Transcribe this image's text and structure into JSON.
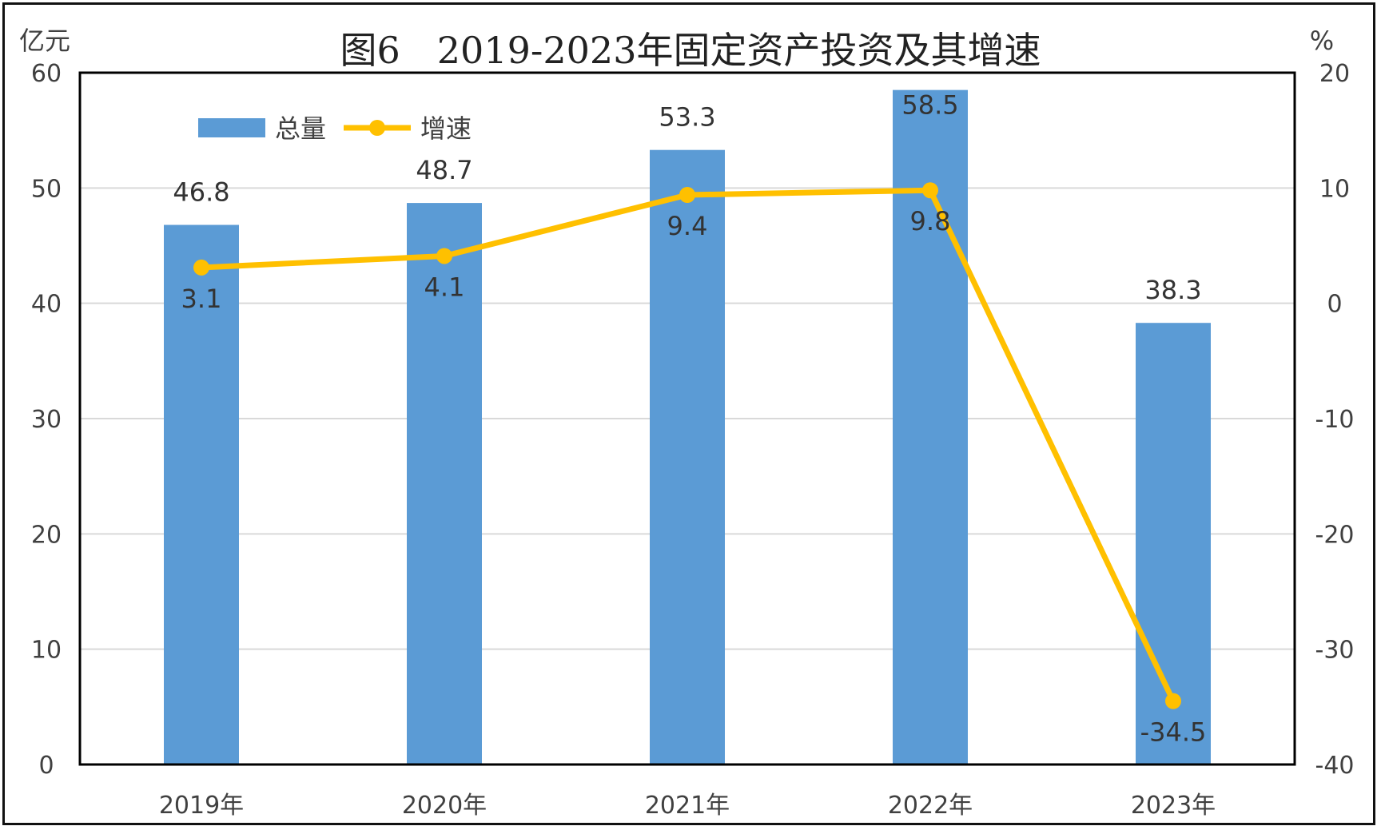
{
  "chart_data": {
    "type": "bar",
    "title": "图6　2019-2023年固定资产投资及其增速",
    "categories": [
      "2019年",
      "2020年",
      "2021年",
      "2022年",
      "2023年"
    ],
    "series": [
      {
        "name": "总量",
        "type": "bar",
        "axis": "left",
        "values": [
          46.8,
          48.7,
          53.3,
          58.5,
          38.3
        ]
      },
      {
        "name": "增速",
        "type": "line",
        "axis": "right",
        "values": [
          3.1,
          4.1,
          9.4,
          9.8,
          -34.5
        ]
      }
    ],
    "y_left": {
      "unit": "亿元",
      "range": [
        0,
        60
      ],
      "ticks": [
        0,
        10,
        20,
        30,
        40,
        50,
        60
      ]
    },
    "y_right": {
      "unit": "%",
      "range": [
        -40,
        20
      ],
      "ticks": [
        -40,
        -30,
        -20,
        -10,
        0,
        10,
        20
      ]
    },
    "legend_position": "top-left",
    "grid": true,
    "colors": {
      "bar": "#5b9bd5",
      "line": "#ffc000",
      "frame": "#000000",
      "grid": "#d9d9d9"
    }
  }
}
